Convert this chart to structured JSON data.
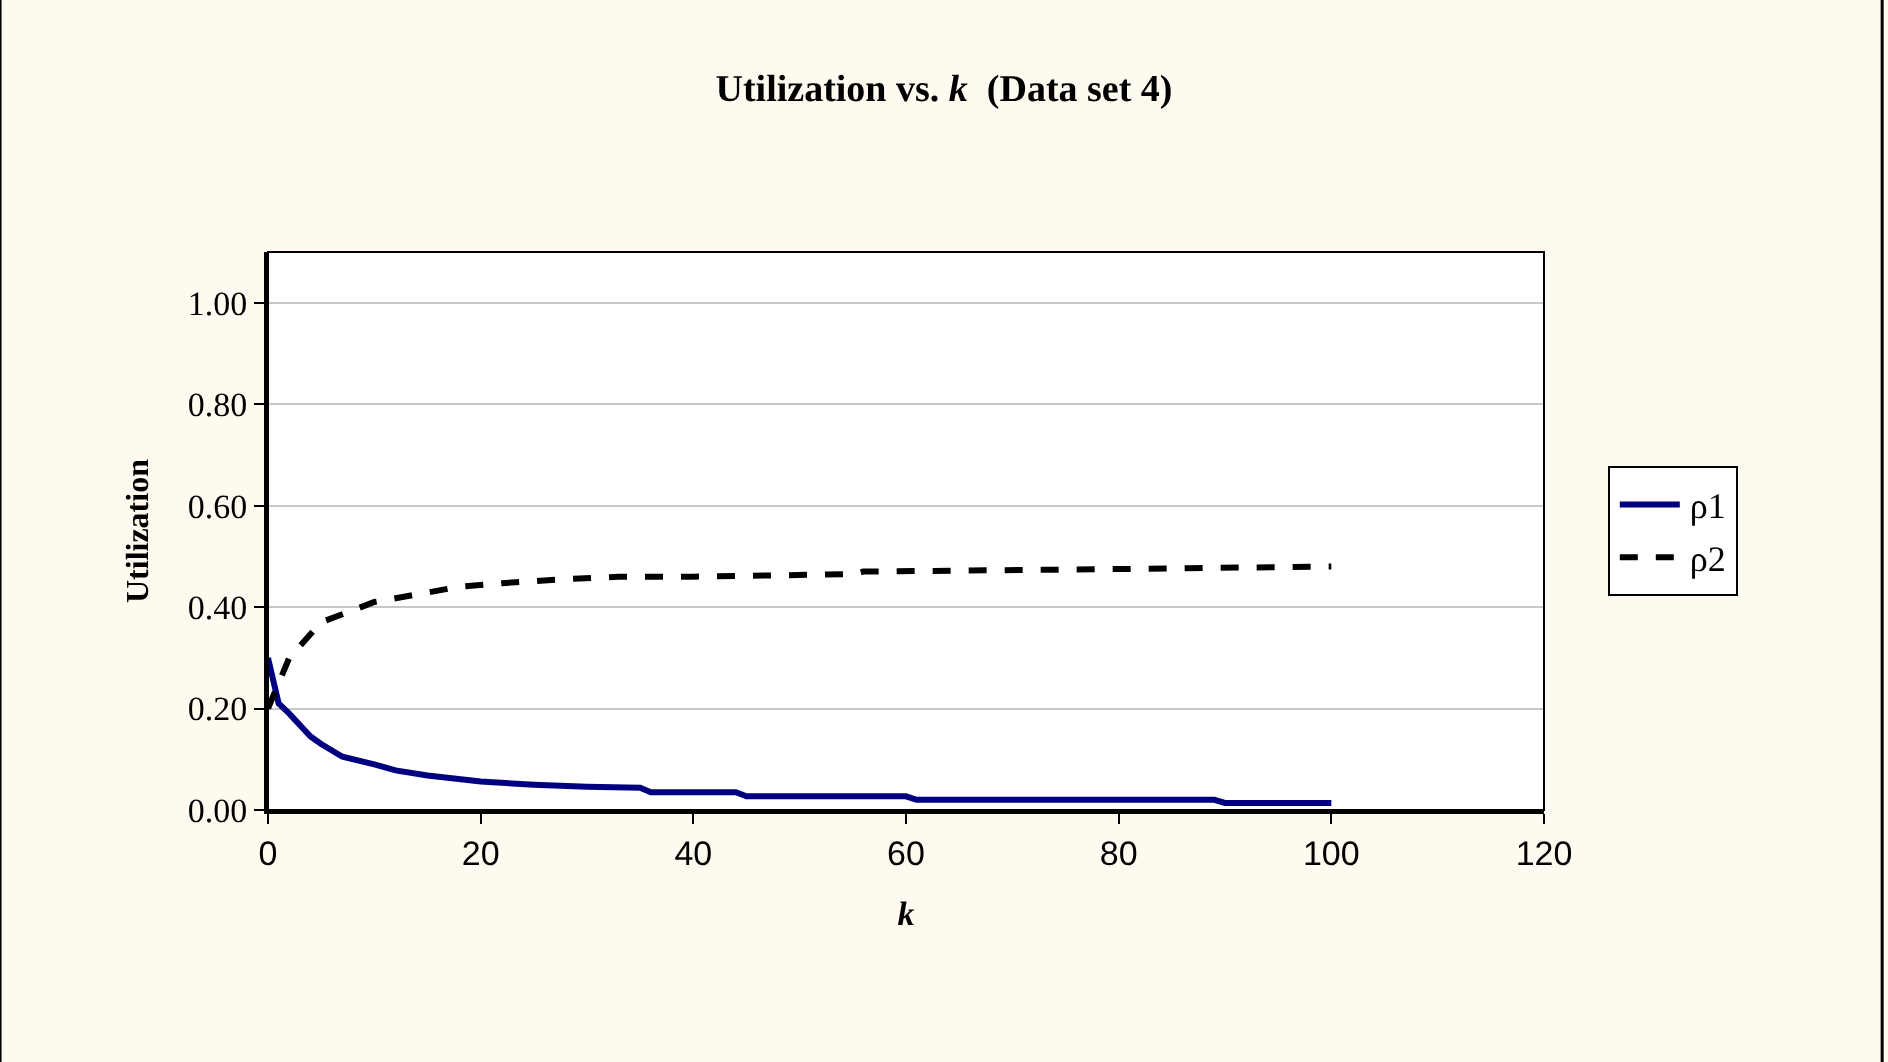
{
  "chart_data": {
    "type": "line",
    "title": "Utilization vs. k  (Data set 4)",
    "xlabel": "k",
    "ylabel": "Utilization",
    "xlim": [
      0,
      120
    ],
    "xticks": [
      0,
      20,
      40,
      60,
      80,
      100,
      120
    ],
    "ylim": [
      0,
      1.1
    ],
    "yticks": [
      {
        "value": 0,
        "label": "0.00"
      },
      {
        "value": 0.2,
        "label": "0.20"
      },
      {
        "value": 0.4,
        "label": "0.40"
      },
      {
        "value": 0.6,
        "label": "0.60"
      },
      {
        "value": 0.8,
        "label": "0.80"
      },
      {
        "value": 1.0,
        "label": "1.00"
      }
    ],
    "grid": "y",
    "legend": "right",
    "marker": "none",
    "series": [
      {
        "name": "ρ1",
        "color": "#000080",
        "line_style": "solid",
        "x": [
          0,
          1,
          2,
          4,
          5,
          7,
          10,
          12,
          15,
          20,
          25,
          30,
          35,
          36,
          44,
          45,
          60,
          61,
          89,
          90,
          100
        ],
        "values": [
          0.3,
          0.21,
          0.19,
          0.145,
          0.13,
          0.105,
          0.09,
          0.078,
          0.068,
          0.056,
          0.05,
          0.046,
          0.044,
          0.035,
          0.035,
          0.027,
          0.027,
          0.02,
          0.02,
          0.014,
          0.014
        ]
      },
      {
        "name": "ρ2",
        "color": "#000000",
        "line_style": "dashed",
        "x": [
          0,
          2,
          5,
          10,
          14,
          18,
          22,
          27,
          33,
          40,
          55,
          56,
          80,
          100
        ],
        "values": [
          0.2,
          0.3,
          0.37,
          0.41,
          0.425,
          0.44,
          0.447,
          0.454,
          0.46,
          0.46,
          0.465,
          0.47,
          0.475,
          0.48
        ]
      }
    ]
  }
}
